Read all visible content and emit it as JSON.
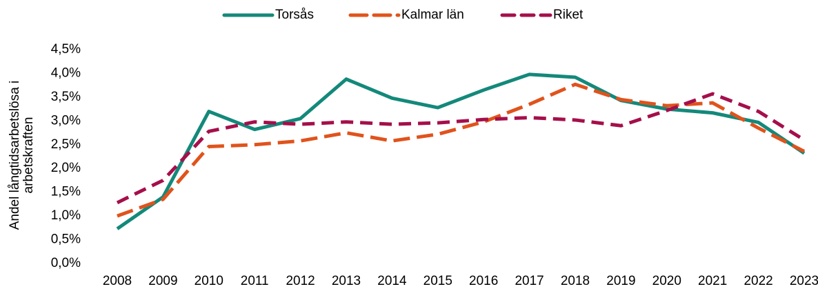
{
  "chart_data": {
    "type": "line",
    "ylabel": [
      "Andel långtidsarbetslösa i",
      "arbetskraften"
    ],
    "categories": [
      "2008",
      "2009",
      "2010",
      "2011",
      "2012",
      "2013",
      "2014",
      "2015",
      "2016",
      "2017",
      "2018",
      "2019",
      "2020",
      "2021",
      "2022",
      "2023"
    ],
    "series": [
      {
        "name": "Torsås",
        "color": "#13897a",
        "values": [
          0.73,
          1.4,
          3.2,
          2.82,
          3.05,
          3.88,
          3.48,
          3.28,
          3.65,
          3.98,
          3.92,
          3.43,
          3.25,
          3.17,
          2.97,
          2.32
        ]
      },
      {
        "name": "Kalmar län",
        "color": "#e0531c",
        "values": [
          1.0,
          1.35,
          2.46,
          2.5,
          2.58,
          2.75,
          2.58,
          2.72,
          2.98,
          3.35,
          3.77,
          3.45,
          3.32,
          3.38,
          2.85,
          2.36
        ]
      },
      {
        "name": "Riket",
        "color": "#a50f4b",
        "values": [
          1.28,
          1.75,
          2.78,
          2.98,
          2.93,
          2.98,
          2.93,
          2.96,
          3.03,
          3.07,
          3.02,
          2.9,
          3.22,
          3.57,
          3.2,
          2.6
        ]
      }
    ],
    "ylim": [
      0,
      4.5
    ],
    "yticks": [
      {
        "value": 0,
        "label": "0,0%"
      },
      {
        "value": 0.5,
        "label": "0,5%"
      },
      {
        "value": 1,
        "label": "1,0%"
      },
      {
        "value": 1.5,
        "label": "1,5%"
      },
      {
        "value": 2,
        "label": "2,0%"
      },
      {
        "value": 2.5,
        "label": "2,5%"
      },
      {
        "value": 3,
        "label": "3,0%"
      },
      {
        "value": 3.5,
        "label": "3,5%"
      },
      {
        "value": 4,
        "label": "4,0%"
      },
      {
        "value": 4.5,
        "label": "4,5%"
      }
    ],
    "legend": "top"
  }
}
